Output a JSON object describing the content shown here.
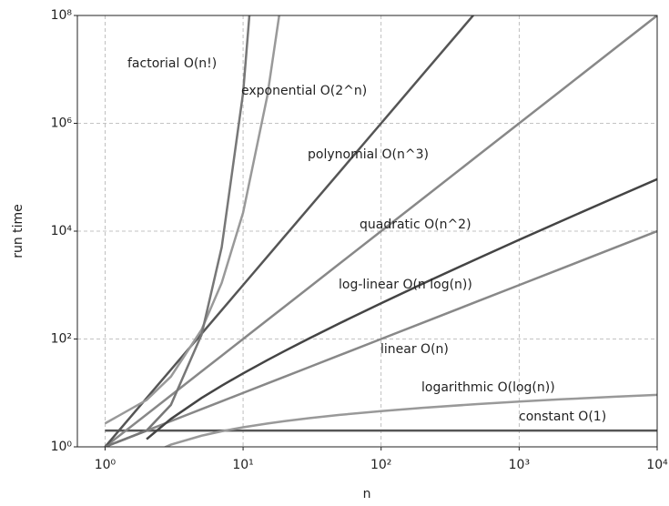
{
  "chart_data": {
    "type": "line",
    "xlabel": "n",
    "ylabel": "run time",
    "xscale": "log",
    "yscale": "log",
    "grid": true,
    "xlim": [
      0.63,
      10000
    ],
    "ylim": [
      1,
      100000000
    ],
    "xticks": [
      {
        "value": 1,
        "label": "10⁰"
      },
      {
        "value": 10,
        "label": "10¹"
      },
      {
        "value": 100,
        "label": "10²"
      },
      {
        "value": 1000,
        "label": "10³"
      },
      {
        "value": 10000,
        "label": "10⁴"
      }
    ],
    "yticks": [
      {
        "value": 1,
        "label": "10⁰"
      },
      {
        "value": 100,
        "label": "10²"
      },
      {
        "value": 10000,
        "label": "10⁴"
      },
      {
        "value": 1000000,
        "label": "10⁶"
      },
      {
        "value": 100000000,
        "label": "10⁸"
      }
    ],
    "x": [
      1,
      2,
      3,
      5,
      7,
      10,
      15,
      20,
      30,
      50,
      100,
      200,
      500,
      1000,
      2000,
      5000,
      10000
    ],
    "series": [
      {
        "name": "constant O(1)",
        "color": "#555555",
        "values": [
          2,
          2,
          2,
          2,
          2,
          2,
          2,
          2,
          2,
          2,
          2,
          2,
          2,
          2,
          2,
          2,
          2
        ]
      },
      {
        "name": "logarithmic O(log(n))",
        "color": "#999999",
        "values": [
          null,
          0.693,
          1.099,
          1.609,
          1.946,
          2.303,
          2.708,
          2.996,
          3.401,
          3.912,
          4.605,
          5.298,
          6.215,
          6.908,
          7.601,
          8.517,
          9.21
        ]
      },
      {
        "name": "linear O(n)",
        "color": "#888888",
        "values": [
          1,
          2,
          3,
          5,
          7,
          10,
          15,
          20,
          30,
          50,
          100,
          200,
          500,
          1000,
          2000,
          5000,
          10000
        ]
      },
      {
        "name": "log-linear O(n log(n))",
        "color": "#444444",
        "values": [
          null,
          1.386,
          3.296,
          8.047,
          13.62,
          23.03,
          40.62,
          59.91,
          102,
          195.6,
          460.5,
          1060,
          3107,
          6908,
          15200,
          42590,
          92100
        ]
      },
      {
        "name": "quadratic O(n^2)",
        "color": "#888888",
        "values": [
          1,
          4,
          9,
          25,
          49,
          100,
          225,
          400,
          900,
          2500,
          10000,
          40000,
          250000,
          1000000,
          4000000,
          25000000,
          100000000
        ]
      },
      {
        "name": "polynomial O(n^3)",
        "color": "#555555",
        "values": [
          1,
          8,
          27,
          125,
          343,
          1000,
          3375,
          8000,
          27000,
          125000,
          1000000,
          8000000,
          125000000,
          null,
          null,
          null,
          null
        ]
      },
      {
        "name": "exponential O(2^n)",
        "color": "#999999",
        "values": [
          2.718,
          7.389,
          20.09,
          148.4,
          1097,
          22026,
          3269017,
          485165195,
          null,
          null,
          null,
          null,
          null,
          null,
          null,
          null,
          null
        ]
      },
      {
        "name": "factorial O(n!)",
        "color": "#777777",
        "values": [
          1,
          2,
          6,
          120,
          5040,
          3628800,
          1308000000000,
          null,
          null,
          null,
          null,
          null,
          null,
          null,
          null,
          null,
          null
        ]
      }
    ]
  }
}
